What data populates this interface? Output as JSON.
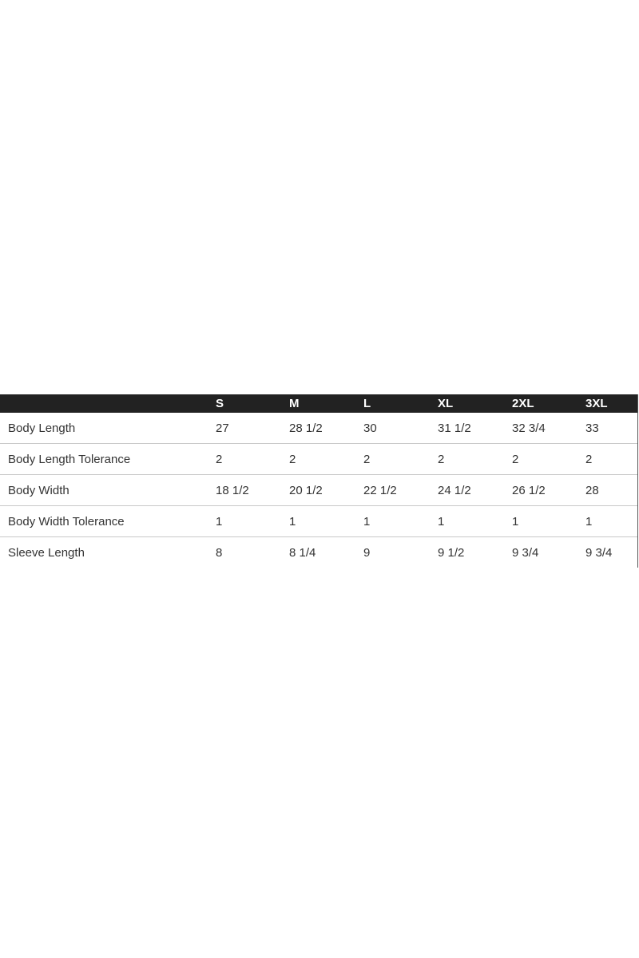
{
  "size_chart": {
    "columns": [
      "",
      "S",
      "M",
      "L",
      "XL",
      "2XL",
      "3XL"
    ],
    "rows": [
      {
        "label": "Body Length",
        "values": [
          "27",
          "28 1/2",
          "30",
          "31 1/2",
          "32 3/4",
          "33"
        ]
      },
      {
        "label": "Body Length Tolerance",
        "values": [
          "2",
          "2",
          "2",
          "2",
          "2",
          "2"
        ]
      },
      {
        "label": "Body Width",
        "values": [
          "18 1/2",
          "20 1/2",
          "22 1/2",
          "24 1/2",
          "26 1/2",
          "28"
        ]
      },
      {
        "label": "Body Width Tolerance",
        "values": [
          "1",
          "1",
          "1",
          "1",
          "1",
          "1"
        ]
      },
      {
        "label": "Sleeve Length",
        "values": [
          "8",
          "8 1/4",
          "9",
          "9 1/2",
          "9 3/4",
          "9 3/4"
        ]
      }
    ],
    "colors": {
      "header_bg": "#222222",
      "header_text": "#ffffff",
      "divider": "#c8c8c8",
      "text": "#333333"
    }
  }
}
